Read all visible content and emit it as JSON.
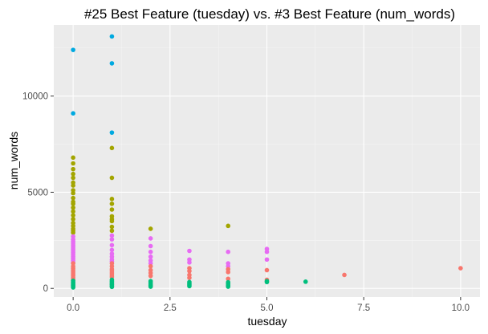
{
  "chart_data": {
    "type": "scatter",
    "title": "#25 Best Feature (tuesday) vs. #3 Best Feature (num_words)",
    "xlabel": "tuesday",
    "ylabel": "num_words",
    "xlim": [
      -0.5,
      10.5
    ],
    "ylim": [
      -450,
      13700
    ],
    "x_ticks": [
      0,
      2.5,
      5,
      7.5,
      10
    ],
    "x_tick_labels": [
      "0.0",
      "2.5",
      "5.0",
      "7.5",
      "10.0"
    ],
    "y_ticks": [
      0,
      5000,
      10000
    ],
    "y_tick_labels": [
      "0",
      "5000",
      "10000"
    ],
    "grid": true,
    "legend": "none",
    "colors": {
      "panel": "#ebebeb",
      "grid_major": "#ffffff",
      "grid_minor": "#f5f5f5",
      "tick": "#333333"
    },
    "series": [
      {
        "color": "#00a9e0",
        "points": [
          [
            0,
            12400
          ],
          [
            0,
            9100
          ],
          [
            1,
            13100
          ],
          [
            1,
            11700
          ],
          [
            1,
            8100
          ]
        ]
      },
      {
        "color": "#a3a500",
        "points": [
          [
            0,
            6800
          ],
          [
            0,
            6500
          ],
          [
            0,
            6200
          ],
          [
            0,
            5950
          ],
          [
            0,
            5750
          ],
          [
            0,
            5500
          ],
          [
            0,
            5350
          ],
          [
            0,
            5100
          ],
          [
            0,
            4950
          ],
          [
            0,
            4700
          ],
          [
            0,
            4500
          ],
          [
            0,
            4400
          ],
          [
            0,
            4200
          ],
          [
            0,
            4000
          ],
          [
            0,
            3800
          ],
          [
            0,
            3600
          ],
          [
            0,
            3400
          ],
          [
            0,
            3250
          ],
          [
            0,
            3100
          ],
          [
            0,
            3000
          ],
          [
            0,
            2900
          ],
          [
            1,
            7300
          ],
          [
            1,
            5750
          ],
          [
            1,
            4650
          ],
          [
            1,
            4400
          ],
          [
            1,
            4100
          ],
          [
            1,
            3750
          ],
          [
            1,
            3600
          ],
          [
            1,
            3500
          ],
          [
            1,
            3200
          ],
          [
            1,
            3000
          ],
          [
            2,
            3100
          ],
          [
            4,
            3250
          ]
        ]
      },
      {
        "color": "#e76bf3",
        "points": [
          [
            0,
            2700
          ],
          [
            0,
            2550
          ],
          [
            0,
            2450
          ],
          [
            0,
            2350
          ],
          [
            0,
            2250
          ],
          [
            0,
            2150
          ],
          [
            0,
            2050
          ],
          [
            0,
            1950
          ],
          [
            0,
            1850
          ],
          [
            0,
            1750
          ],
          [
            0,
            1650
          ],
          [
            0,
            1550
          ],
          [
            0,
            1450
          ],
          [
            0,
            1350
          ],
          [
            1,
            2750
          ],
          [
            1,
            2550
          ],
          [
            1,
            2250
          ],
          [
            1,
            2000
          ],
          [
            1,
            1800
          ],
          [
            1,
            1650
          ],
          [
            1,
            1500
          ],
          [
            1,
            1400
          ],
          [
            2,
            2600
          ],
          [
            2,
            2200
          ],
          [
            2,
            1900
          ],
          [
            2,
            1650
          ],
          [
            2,
            1450
          ],
          [
            2,
            1300
          ],
          [
            3,
            1950
          ],
          [
            3,
            1500
          ],
          [
            3,
            1350
          ],
          [
            4,
            1900
          ],
          [
            4,
            1300
          ],
          [
            4,
            1150
          ],
          [
            5,
            2050
          ],
          [
            5,
            1900
          ],
          [
            5,
            1500
          ]
        ]
      },
      {
        "color": "#f8766d",
        "points": [
          [
            0,
            1300
          ],
          [
            0,
            1150
          ],
          [
            0,
            1050
          ],
          [
            0,
            950
          ],
          [
            0,
            850
          ],
          [
            0,
            750
          ],
          [
            0,
            650
          ],
          [
            0,
            550
          ],
          [
            0,
            450
          ],
          [
            1,
            1300
          ],
          [
            1,
            1150
          ],
          [
            1,
            1000
          ],
          [
            1,
            900
          ],
          [
            1,
            800
          ],
          [
            1,
            700
          ],
          [
            1,
            600
          ],
          [
            2,
            1150
          ],
          [
            2,
            950
          ],
          [
            2,
            800
          ],
          [
            2,
            650
          ],
          [
            3,
            1050
          ],
          [
            3,
            900
          ],
          [
            3,
            700
          ],
          [
            3,
            550
          ],
          [
            4,
            1000
          ],
          [
            4,
            850
          ],
          [
            4,
            500
          ],
          [
            5,
            950
          ],
          [
            5,
            450
          ],
          [
            7,
            700
          ],
          [
            10,
            1050
          ]
        ]
      },
      {
        "color": "#00bf7d",
        "points": [
          [
            0,
            400
          ],
          [
            0,
            330
          ],
          [
            0,
            270
          ],
          [
            0,
            210
          ],
          [
            0,
            150
          ],
          [
            0,
            100
          ],
          [
            0,
            50
          ],
          [
            1,
            450
          ],
          [
            1,
            380
          ],
          [
            1,
            310
          ],
          [
            1,
            250
          ],
          [
            1,
            190
          ],
          [
            1,
            130
          ],
          [
            1,
            80
          ],
          [
            2,
            380
          ],
          [
            2,
            300
          ],
          [
            2,
            220
          ],
          [
            2,
            150
          ],
          [
            2,
            90
          ],
          [
            3,
            330
          ],
          [
            3,
            250
          ],
          [
            3,
            180
          ],
          [
            3,
            120
          ],
          [
            4,
            320
          ],
          [
            4,
            240
          ],
          [
            4,
            160
          ],
          [
            4,
            90
          ],
          [
            5,
            380
          ],
          [
            5,
            330
          ],
          [
            6,
            350
          ]
        ]
      }
    ]
  }
}
